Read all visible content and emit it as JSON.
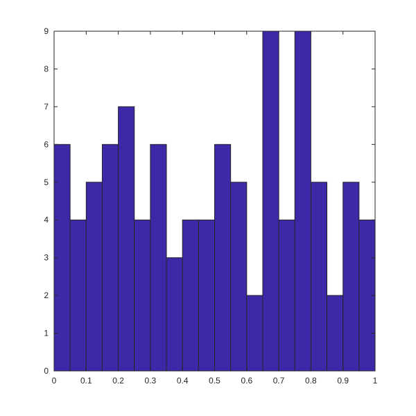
{
  "chart_data": {
    "type": "bar",
    "title": "",
    "xlabel": "",
    "ylabel": "",
    "bin_edges": [
      0,
      0.05,
      0.1,
      0.15,
      0.2,
      0.25,
      0.3,
      0.35,
      0.4,
      0.45,
      0.5,
      0.55,
      0.6,
      0.65,
      0.7,
      0.75,
      0.8,
      0.85,
      0.9,
      0.95,
      1
    ],
    "bin_centers": [
      0.025,
      0.075,
      0.125,
      0.175,
      0.225,
      0.275,
      0.325,
      0.375,
      0.425,
      0.475,
      0.525,
      0.575,
      0.625,
      0.675,
      0.725,
      0.775,
      0.825,
      0.875,
      0.925,
      0.975
    ],
    "values": [
      6,
      4,
      5,
      6,
      7,
      4,
      6,
      3,
      4,
      4,
      6,
      5,
      2,
      9,
      4,
      9,
      5,
      2,
      5,
      4
    ],
    "xlim": [
      0,
      1
    ],
    "ylim": [
      0,
      9
    ],
    "xticks": [
      0,
      0.1,
      0.2,
      0.3,
      0.4,
      0.5,
      0.6,
      0.7,
      0.8,
      0.9,
      1
    ],
    "xtick_labels": [
      "0",
      "0.1",
      "0.2",
      "0.3",
      "0.4",
      "0.5",
      "0.6",
      "0.7",
      "0.8",
      "0.9",
      "1"
    ],
    "yticks": [
      0,
      1,
      2,
      3,
      4,
      5,
      6,
      7,
      8,
      9
    ],
    "ytick_labels": [
      "0",
      "1",
      "2",
      "3",
      "4",
      "5",
      "6",
      "7",
      "8",
      "9"
    ],
    "grid": false,
    "legend": "none",
    "bar_color": "#3d29a8",
    "edge_color": "#262626"
  }
}
